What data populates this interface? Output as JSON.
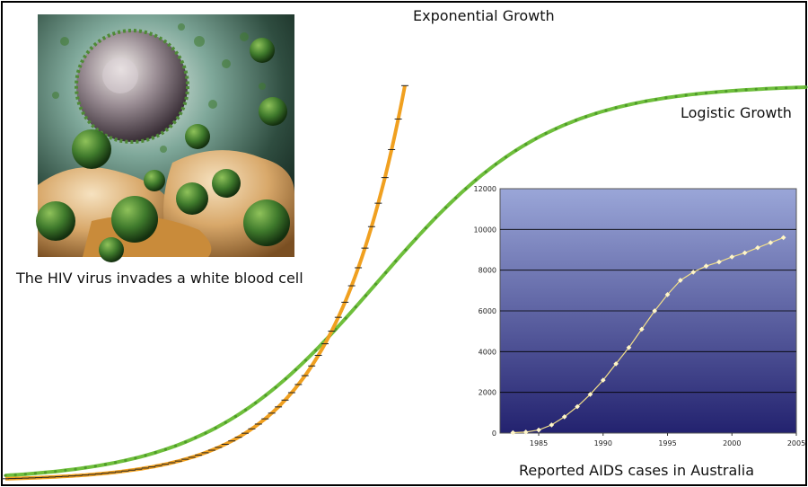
{
  "labels": {
    "exponential": "Exponential Growth",
    "logistic": "Logistic Growth",
    "photo_caption": "The HIV virus invades a white blood cell",
    "inset_caption": "Reported AIDS cases in Australia"
  },
  "colors": {
    "exponential": "#f0a020",
    "logistic": "#6fbf3c",
    "inset_bg_top": "#9aa6d8",
    "inset_bg_bottom": "#23226f",
    "inset_line": "#f3e08a"
  },
  "illustration": {
    "subject": "hiv-virus-and-white-blood-cell"
  },
  "chart_data": [
    {
      "type": "line",
      "title": "",
      "series": [
        {
          "name": "Exponential Growth",
          "shape": "exponential"
        },
        {
          "name": "Logistic Growth",
          "shape": "logistic"
        }
      ],
      "axes": false,
      "grid": false
    },
    {
      "type": "line",
      "title": "",
      "xlabel": "",
      "ylabel": "",
      "x": [
        1983,
        1984,
        1985,
        1986,
        1987,
        1988,
        1989,
        1990,
        1991,
        1992,
        1993,
        1994,
        1995,
        1996,
        1997,
        1998,
        1999,
        2000,
        2001,
        2002,
        2003,
        2004
      ],
      "values": [
        20,
        50,
        150,
        400,
        800,
        1300,
        1900,
        2600,
        3400,
        4200,
        5100,
        6000,
        6800,
        7500,
        7900,
        8200,
        8400,
        8650,
        8850,
        9100,
        9350,
        9600
      ],
      "xlim": [
        1982,
        2005
      ],
      "ylim": [
        0,
        12000
      ],
      "xticks": [
        1985,
        1990,
        1995,
        2000,
        2005
      ],
      "yticks": [
        0,
        2000,
        4000,
        6000,
        8000,
        10000,
        12000
      ],
      "grid": true,
      "legend": "none"
    }
  ]
}
